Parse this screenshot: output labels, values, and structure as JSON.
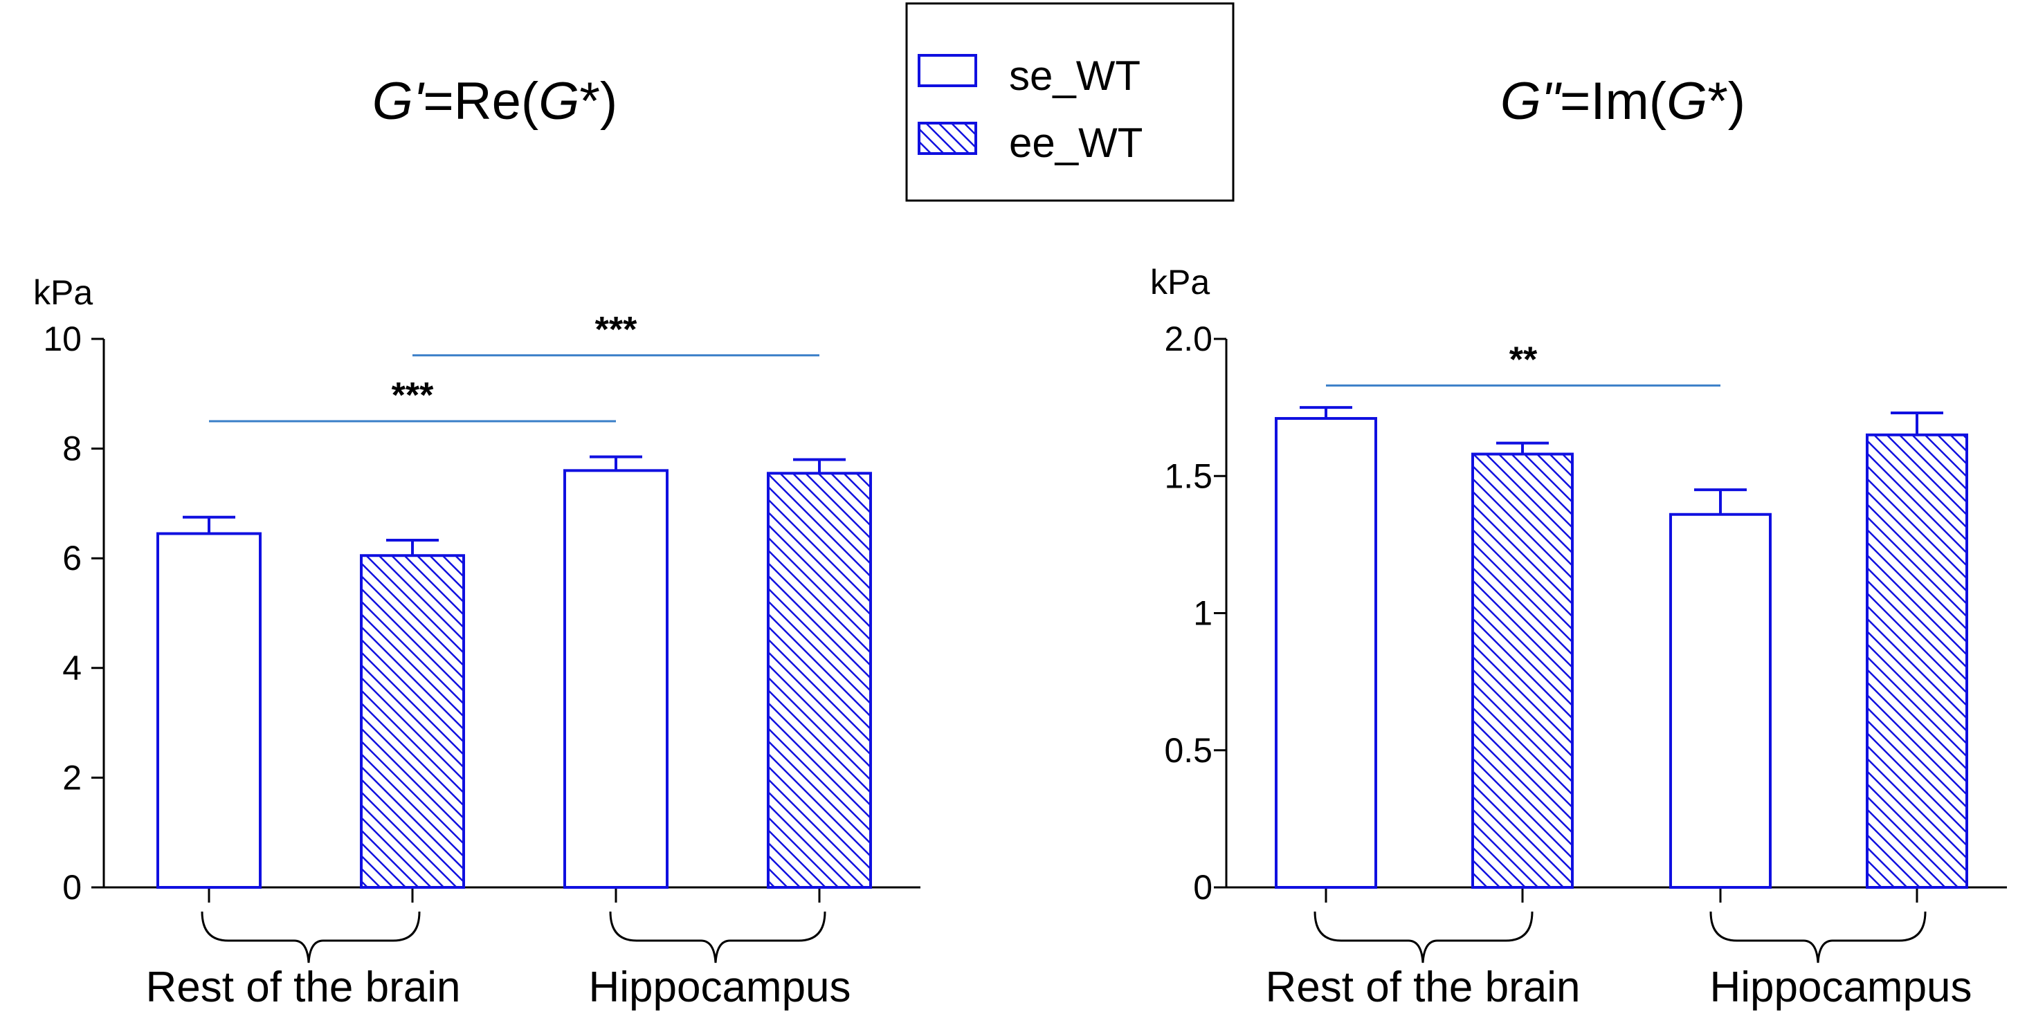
{
  "colors": {
    "bar_stroke": "#1010e0",
    "hatch": "#1010e0",
    "axis": "#000000",
    "sig_line": "#3a7fc8",
    "legend_border": "#000000"
  },
  "legend": {
    "items": [
      {
        "label": "se_WT",
        "style": "open"
      },
      {
        "label": "ee_WT",
        "style": "hatched"
      }
    ]
  },
  "chart_data": [
    {
      "type": "bar",
      "title_parts": [
        {
          "text": "G",
          "italic": true
        },
        {
          "text": "'",
          "italic": true
        },
        {
          "text": "=Re(",
          "italic": false
        },
        {
          "text": "G",
          "italic": true
        },
        {
          "text": "*)",
          "italic": false
        }
      ],
      "ylabel": "kPa",
      "ylim": [
        0,
        10
      ],
      "yticks": [
        "0",
        "2",
        "4",
        "6",
        "8",
        "10"
      ],
      "ytick_values": [
        0,
        2,
        4,
        6,
        8,
        10
      ],
      "groups": [
        "Rest of the brain",
        "Hippocampus"
      ],
      "series": [
        {
          "name": "se_WT",
          "values": [
            6.45,
            7.6
          ],
          "errors": [
            0.3,
            0.25
          ]
        },
        {
          "name": "ee_WT",
          "values": [
            6.05,
            7.55
          ],
          "errors": [
            0.28,
            0.25
          ]
        }
      ],
      "significance": [
        {
          "label": "***",
          "from_bar": 0,
          "to_bar": 2,
          "y": 8.5
        },
        {
          "label": "***",
          "from_bar": 1,
          "to_bar": 3,
          "y": 9.7
        }
      ]
    },
    {
      "type": "bar",
      "title_parts": [
        {
          "text": "G",
          "italic": true
        },
        {
          "text": "\"",
          "italic": true
        },
        {
          "text": "=Im(",
          "italic": false
        },
        {
          "text": "G",
          "italic": true
        },
        {
          "text": "*)",
          "italic": false
        }
      ],
      "ylabel": "kPa",
      "ylim": [
        0,
        2.0
      ],
      "yticks": [
        "0",
        "0.5",
        "1",
        "1.5",
        "2.0"
      ],
      "ytick_values": [
        0,
        0.5,
        1,
        1.5,
        2.0
      ],
      "groups": [
        "Rest of the brain",
        "Hippocampus"
      ],
      "series": [
        {
          "name": "se_WT",
          "values": [
            1.71,
            1.36
          ],
          "errors": [
            0.04,
            0.09
          ]
        },
        {
          "name": "ee_WT",
          "values": [
            1.58,
            1.65
          ],
          "errors": [
            0.04,
            0.08
          ]
        }
      ],
      "significance": [
        {
          "label": "**",
          "from_bar": 0,
          "to_bar": 2,
          "y": 1.83
        }
      ]
    }
  ]
}
